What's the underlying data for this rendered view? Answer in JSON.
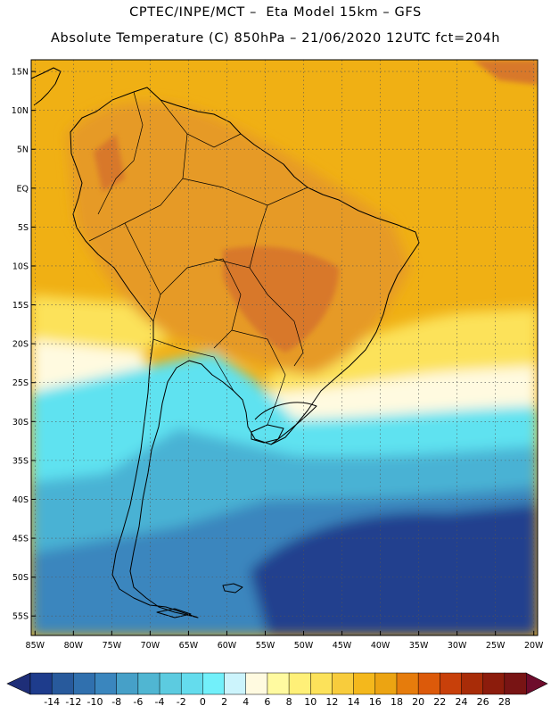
{
  "header": {
    "line1": "CPTEC/INPE/MCT –  Eta Model 15km – GFS",
    "line2": "Absolute Temperature (C) 850hPa – 21/06/2020 12UTC fct=204h"
  },
  "axes": {
    "lat_labels": [
      "15N",
      "10N",
      "5N",
      "EQ",
      "5S",
      "10S",
      "15S",
      "20S",
      "25S",
      "30S",
      "35S",
      "40S",
      "45S",
      "50S",
      "55S"
    ],
    "lon_labels": [
      "85W",
      "80W",
      "75W",
      "70W",
      "65W",
      "60W",
      "55W",
      "50W",
      "45W",
      "40W",
      "35W",
      "30W",
      "25W",
      "20W"
    ],
    "lat_values": [
      15,
      10,
      5,
      0,
      -5,
      -10,
      -15,
      -20,
      -25,
      -30,
      -35,
      -40,
      -45,
      -50,
      -55
    ],
    "lon_values": [
      -85,
      -80,
      -75,
      -70,
      -65,
      -60,
      -55,
      -50,
      -45,
      -40,
      -35,
      -30,
      -25,
      -20
    ],
    "lat_range": [
      -57.5,
      16.5
    ],
    "lon_range": [
      -85.5,
      -19.5
    ],
    "grid": "dotted"
  },
  "colorbar": {
    "labels": [
      "-14",
      "-12",
      "-10",
      "-8",
      "-6",
      "-4",
      "-2",
      "0",
      "2",
      "4",
      "6",
      "8",
      "10",
      "12",
      "14",
      "16",
      "18",
      "20",
      "22",
      "24",
      "26",
      "28"
    ],
    "colors": [
      "#1e3c8c",
      "#285a9c",
      "#3070ae",
      "#3a86be",
      "#46a0c8",
      "#50b6d2",
      "#5ccbe0",
      "#64dced",
      "#72f0fa",
      "#ccf4fc",
      "#fffae0",
      "#fffaa0",
      "#fff078",
      "#fce25a",
      "#f8cc3c",
      "#f4b81c",
      "#eca412",
      "#e67c0c",
      "#dc5a0a",
      "#c8400a",
      "#a82c08",
      "#8c1c0c",
      "#781414"
    ],
    "low_arrow_color": "#1e2e78",
    "high_arrow_color": "#6e0c2c"
  },
  "field_colors": {
    "warm_orange": "#f0b014",
    "land_warm": "#e69a26",
    "land_hot": "#d8782a",
    "cool_yellow": "#fce25a",
    "pale": "#fffae0",
    "cyan": "#5ee2f0",
    "sky": "#4ab2d4",
    "blue": "#3a86be",
    "deep_blue": "#23408e"
  }
}
